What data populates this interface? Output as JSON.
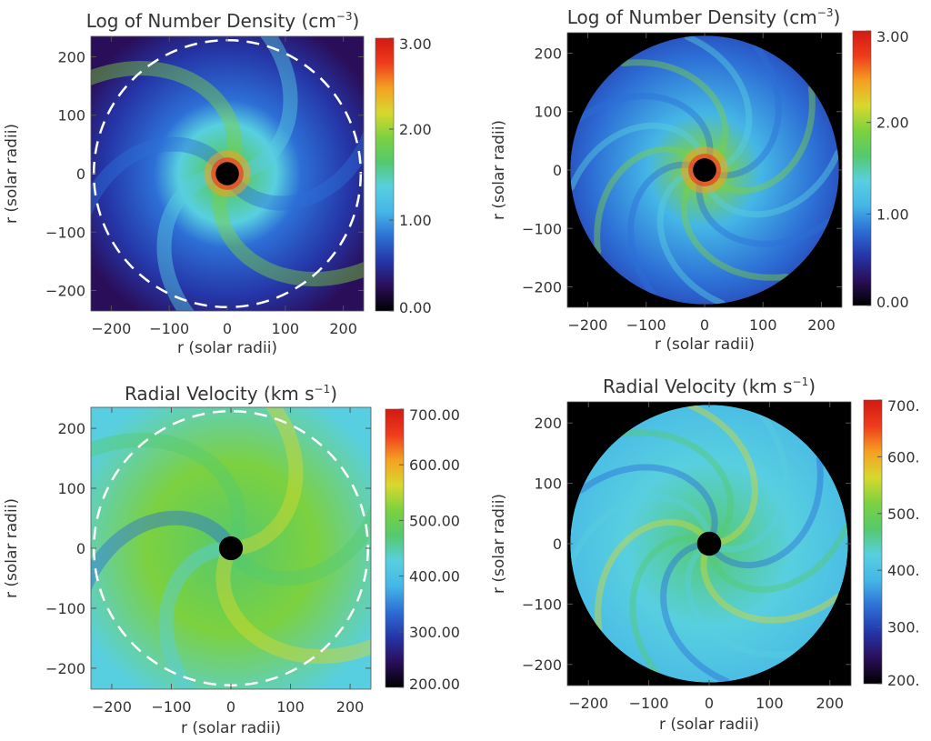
{
  "colors": {
    "colormap": [
      "#000000",
      "#2a0e5a",
      "#2536a8",
      "#2d6fd6",
      "#45b6e6",
      "#58cfe0",
      "#55c96e",
      "#7cd13f",
      "#d8d82e",
      "#f5a022",
      "#ef3b1c",
      "#d21a12"
    ],
    "background_black": "#000000",
    "circle_dashes": "#ffffff",
    "sun_disc": "#000000"
  },
  "chart_data": [
    {
      "type": "heatmap",
      "title": "Log of Number Density (cm",
      "title_sup": "−3",
      "title_close": ")",
      "xlabel": "r (solar radii)",
      "ylabel": "r (solar radii)",
      "xlim": [
        -235,
        235
      ],
      "ylim": [
        -235,
        235
      ],
      "xticks": [
        -200,
        -100,
        0,
        100,
        200
      ],
      "xtick_labels": [
        "−200",
        "−100",
        "0",
        "100",
        "200"
      ],
      "yticks": [
        -200,
        -100,
        0,
        100,
        200
      ],
      "ytick_labels": [
        "−200",
        "−100",
        "0",
        "100",
        "200"
      ],
      "colorbar": {
        "range": [
          0.0,
          3.0
        ],
        "ticks": [
          0.0,
          1.0,
          2.0,
          3.0
        ],
        "tick_labels": [
          "0.00",
          "1.00",
          "2.00",
          "3.00"
        ]
      },
      "masked_outside_circle": false,
      "dashed_circle_radius": 230,
      "sun_radius": 20,
      "field_description": "density peaks near 3 at the inner boundary, ~2 in a lumpy inner region out to ~100 solar radii, ~1 elsewhere"
    },
    {
      "type": "heatmap",
      "title": "Log of Number Density (cm",
      "title_sup": "−3",
      "title_close": ")",
      "xlabel": "r (solar radii)",
      "ylabel": "r (solar radii)",
      "xlim": [
        -235,
        235
      ],
      "ylim": [
        -235,
        235
      ],
      "xticks": [
        -200,
        -100,
        0,
        100,
        200
      ],
      "xtick_labels": [
        "−200",
        "−100",
        "0",
        "100",
        "200"
      ],
      "yticks": [
        -200,
        -100,
        0,
        100,
        200
      ],
      "ytick_labels": [
        "−200",
        "−100",
        "0",
        "100",
        "200"
      ],
      "colorbar": {
        "range": [
          0.0,
          3.0
        ],
        "ticks": [
          0.0,
          1.0,
          2.0,
          3.0
        ],
        "tick_labels": [
          "0.00",
          "1.00",
          "2.00",
          "3.00"
        ]
      },
      "masked_outside_circle": true,
      "domain_radius": 230,
      "sun_radius": 20,
      "field_description": "spiral streamers of density between ~1 and ~2, peaking near 3 close to the sun"
    },
    {
      "type": "heatmap",
      "title": "Radial Velocity (km s",
      "title_sup": "−1",
      "title_close": ")",
      "xlabel": "r (solar radii)",
      "ylabel": "r (solar radii)",
      "xlim": [
        -235,
        235
      ],
      "ylim": [
        -235,
        235
      ],
      "xticks": [
        -200,
        -100,
        0,
        100,
        200
      ],
      "xtick_labels": [
        "−200",
        "−100",
        "0",
        "100",
        "200"
      ],
      "yticks": [
        -200,
        -100,
        0,
        100,
        200
      ],
      "ytick_labels": [
        "−200",
        "−100",
        "0",
        "100",
        "200"
      ],
      "colorbar": {
        "range": [
          200,
          700
        ],
        "ticks": [
          200,
          300,
          400,
          500,
          600,
          700
        ],
        "tick_labels": [
          "200.00",
          "300.00",
          "400.00",
          "500.00",
          "600.00",
          "700.00"
        ]
      },
      "masked_outside_circle": false,
      "dashed_circle_radius": 230,
      "sun_radius": 20,
      "field_description": "smooth spiral bands of radial velocity between ~400 and ~580 km/s"
    },
    {
      "type": "heatmap",
      "title": "Radial Velocity (km s",
      "title_sup": "−1",
      "title_close": ")",
      "xlabel": "r (solar radii)",
      "ylabel": "r (solar radii)",
      "xlim": [
        -235,
        235
      ],
      "ylim": [
        -235,
        235
      ],
      "xticks": [
        -200,
        -100,
        0,
        100,
        200
      ],
      "xtick_labels": [
        "−200",
        "−100",
        "0",
        "100",
        "200"
      ],
      "yticks": [
        -200,
        -100,
        0,
        100,
        200
      ],
      "ytick_labels": [
        "−200",
        "−100",
        "0",
        "100",
        "200"
      ],
      "colorbar": {
        "range": [
          200,
          700
        ],
        "ticks": [
          200,
          300,
          400,
          500,
          600,
          700
        ],
        "tick_labels": [
          "200.",
          "300.",
          "400.",
          "500.",
          "600.",
          "700."
        ]
      },
      "masked_outside_circle": true,
      "domain_radius": 230,
      "sun_radius": 20,
      "field_description": "spiral bands of radial velocity between ~350 and ~600 km/s with thin slow streams"
    }
  ]
}
